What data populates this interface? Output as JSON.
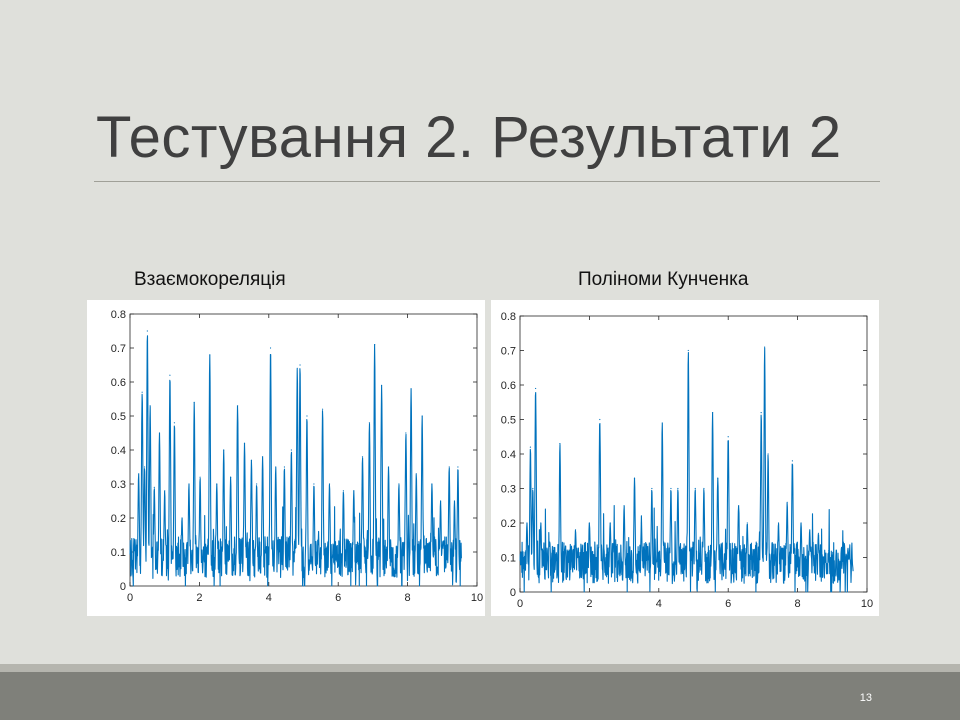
{
  "slide": {
    "title": "Тестування 2. Результати 2",
    "number": "13"
  },
  "colors": {
    "background": "#dfe0db",
    "footer": "#7f807a",
    "series": "#0072bd"
  },
  "chart_data": [
    {
      "type": "line",
      "caption": "Взаємокореляція",
      "xlim": [
        0,
        10
      ],
      "ylim": [
        0,
        0.8
      ],
      "x_ticks": [
        "0",
        "2",
        "4",
        "6",
        "8",
        "10"
      ],
      "y_ticks": [
        "0",
        "0.1",
        "0.2",
        "0.3",
        "0.4",
        "0.5",
        "0.6",
        "0.7",
        "0.8"
      ],
      "grid": false,
      "x_range": [
        0,
        9.55
      ],
      "baseline_level": 0.1,
      "peaks": [
        {
          "x": 0.25,
          "y": 0.33
        },
        {
          "x": 0.35,
          "y": 0.57
        },
        {
          "x": 0.42,
          "y": 0.35
        },
        {
          "x": 0.5,
          "y": 0.75
        },
        {
          "x": 0.58,
          "y": 0.53
        },
        {
          "x": 0.7,
          "y": 0.29
        },
        {
          "x": 0.85,
          "y": 0.45
        },
        {
          "x": 1.0,
          "y": 0.28
        },
        {
          "x": 1.15,
          "y": 0.62
        },
        {
          "x": 1.28,
          "y": 0.48
        },
        {
          "x": 1.5,
          "y": 0.2
        },
        {
          "x": 1.7,
          "y": 0.3
        },
        {
          "x": 1.85,
          "y": 0.54
        },
        {
          "x": 2.02,
          "y": 0.32
        },
        {
          "x": 2.3,
          "y": 0.68
        },
        {
          "x": 2.5,
          "y": 0.3
        },
        {
          "x": 2.7,
          "y": 0.4
        },
        {
          "x": 2.9,
          "y": 0.32
        },
        {
          "x": 3.1,
          "y": 0.53
        },
        {
          "x": 3.3,
          "y": 0.42
        },
        {
          "x": 3.5,
          "y": 0.37
        },
        {
          "x": 3.65,
          "y": 0.3
        },
        {
          "x": 3.82,
          "y": 0.38
        },
        {
          "x": 4.05,
          "y": 0.7
        },
        {
          "x": 4.2,
          "y": 0.35
        },
        {
          "x": 4.45,
          "y": 0.35
        },
        {
          "x": 4.65,
          "y": 0.4
        },
        {
          "x": 4.82,
          "y": 0.64
        },
        {
          "x": 4.9,
          "y": 0.65
        },
        {
          "x": 5.1,
          "y": 0.5
        },
        {
          "x": 5.3,
          "y": 0.3
        },
        {
          "x": 5.55,
          "y": 0.52
        },
        {
          "x": 5.75,
          "y": 0.3
        },
        {
          "x": 6.15,
          "y": 0.28
        },
        {
          "x": 6.45,
          "y": 0.28
        },
        {
          "x": 6.7,
          "y": 0.38
        },
        {
          "x": 6.9,
          "y": 0.48
        },
        {
          "x": 7.05,
          "y": 0.71
        },
        {
          "x": 7.25,
          "y": 0.59
        },
        {
          "x": 7.45,
          "y": 0.35
        },
        {
          "x": 7.75,
          "y": 0.3
        },
        {
          "x": 7.95,
          "y": 0.45
        },
        {
          "x": 8.1,
          "y": 0.58
        },
        {
          "x": 8.25,
          "y": 0.33
        },
        {
          "x": 8.42,
          "y": 0.5
        },
        {
          "x": 8.7,
          "y": 0.3
        },
        {
          "x": 8.95,
          "y": 0.25
        },
        {
          "x": 9.2,
          "y": 0.35
        },
        {
          "x": 9.35,
          "y": 0.25
        },
        {
          "x": 9.45,
          "y": 0.35
        }
      ]
    },
    {
      "type": "line",
      "caption": "Поліноми Кунченка",
      "xlim": [
        0,
        10
      ],
      "ylim": [
        0,
        0.8
      ],
      "x_ticks": [
        "0",
        "2",
        "4",
        "6",
        "8",
        "10"
      ],
      "y_ticks": [
        "0",
        "0.1",
        "0.2",
        "0.3",
        "0.4",
        "0.5",
        "0.6",
        "0.7",
        "0.8"
      ],
      "grid": false,
      "x_range": [
        0,
        9.6
      ],
      "baseline_level": 0.1,
      "peaks": [
        {
          "x": 0.2,
          "y": 0.2
        },
        {
          "x": 0.3,
          "y": 0.42
        },
        {
          "x": 0.37,
          "y": 0.3
        },
        {
          "x": 0.45,
          "y": 0.59
        },
        {
          "x": 0.6,
          "y": 0.2
        },
        {
          "x": 1.15,
          "y": 0.43
        },
        {
          "x": 1.6,
          "y": 0.18
        },
        {
          "x": 2.0,
          "y": 0.2
        },
        {
          "x": 2.3,
          "y": 0.5
        },
        {
          "x": 2.6,
          "y": 0.2
        },
        {
          "x": 3.0,
          "y": 0.25
        },
        {
          "x": 3.3,
          "y": 0.33
        },
        {
          "x": 3.5,
          "y": 0.2
        },
        {
          "x": 3.8,
          "y": 0.3
        },
        {
          "x": 4.1,
          "y": 0.49
        },
        {
          "x": 4.35,
          "y": 0.3
        },
        {
          "x": 4.55,
          "y": 0.3
        },
        {
          "x": 4.85,
          "y": 0.7
        },
        {
          "x": 5.05,
          "y": 0.3
        },
        {
          "x": 5.3,
          "y": 0.3
        },
        {
          "x": 5.55,
          "y": 0.52
        },
        {
          "x": 5.7,
          "y": 0.33
        },
        {
          "x": 6.0,
          "y": 0.45
        },
        {
          "x": 6.3,
          "y": 0.25
        },
        {
          "x": 6.55,
          "y": 0.2
        },
        {
          "x": 6.95,
          "y": 0.52
        },
        {
          "x": 7.05,
          "y": 0.71
        },
        {
          "x": 7.15,
          "y": 0.4
        },
        {
          "x": 7.45,
          "y": 0.2
        },
        {
          "x": 7.7,
          "y": 0.26
        },
        {
          "x": 7.85,
          "y": 0.38
        },
        {
          "x": 8.1,
          "y": 0.2
        },
        {
          "x": 8.35,
          "y": 0.18
        },
        {
          "x": 8.6,
          "y": 0.17
        },
        {
          "x": 8.9,
          "y": 0.12
        },
        {
          "x": 9.3,
          "y": 0.1
        },
        {
          "x": 9.5,
          "y": 0.12
        }
      ]
    }
  ]
}
